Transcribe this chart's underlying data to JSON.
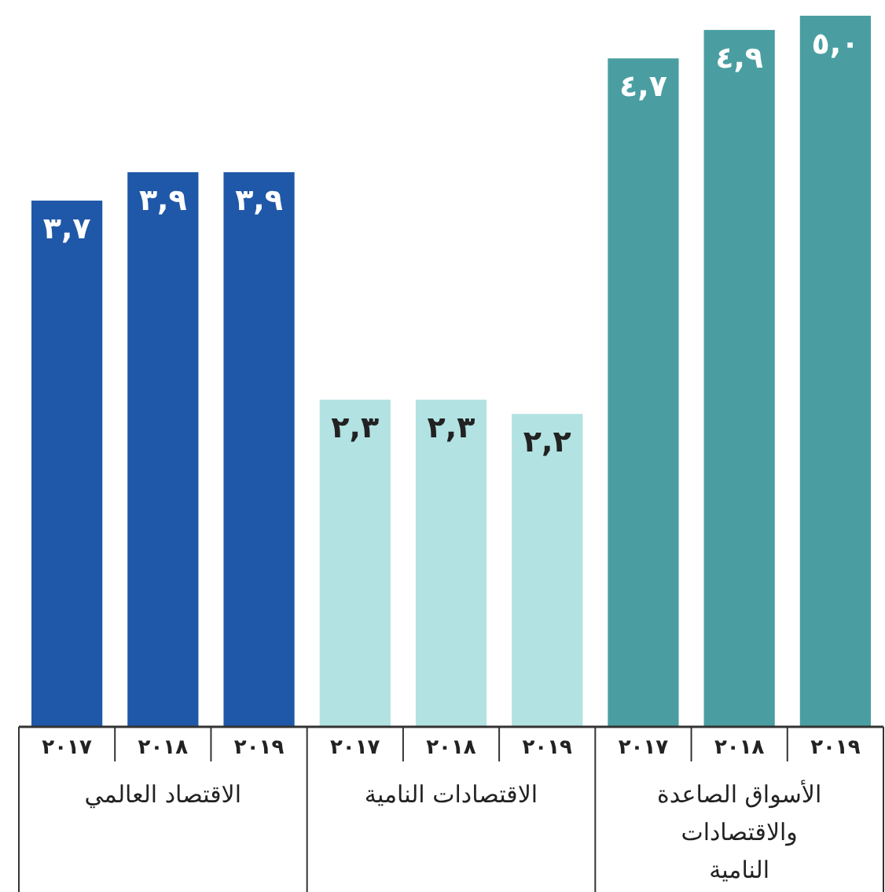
{
  "chart_data": {
    "type": "bar",
    "categories": [
      "٢٠١٧",
      "٢٠١٨",
      "٢٠١٩",
      "٢٠١٧",
      "٢٠١٨",
      "٢٠١٩",
      "٢٠١٧",
      "٢٠١٨",
      "٢٠١٩"
    ],
    "values": [
      3.7,
      3.9,
      3.9,
      2.3,
      2.3,
      2.2,
      4.7,
      4.9,
      5.0
    ],
    "value_labels": [
      "٣,٧",
      "٣,٩",
      "٣,٩",
      "٢,٣",
      "٢,٣",
      "٢,٢",
      "٤,٧",
      "٤,٩",
      "٥,٠"
    ],
    "colors": [
      "#1f58a8",
      "#1f58a8",
      "#1f58a8",
      "#b2e2e2",
      "#b2e2e2",
      "#b2e2e2",
      "#4a9ea1",
      "#4a9ea1",
      "#4a9ea1"
    ],
    "annotations": [
      "الاقتصاد العالمي",
      "الاقتصادات النامية",
      "الأسواق الصاعدة والاقتصادات النامية"
    ]
  }
}
